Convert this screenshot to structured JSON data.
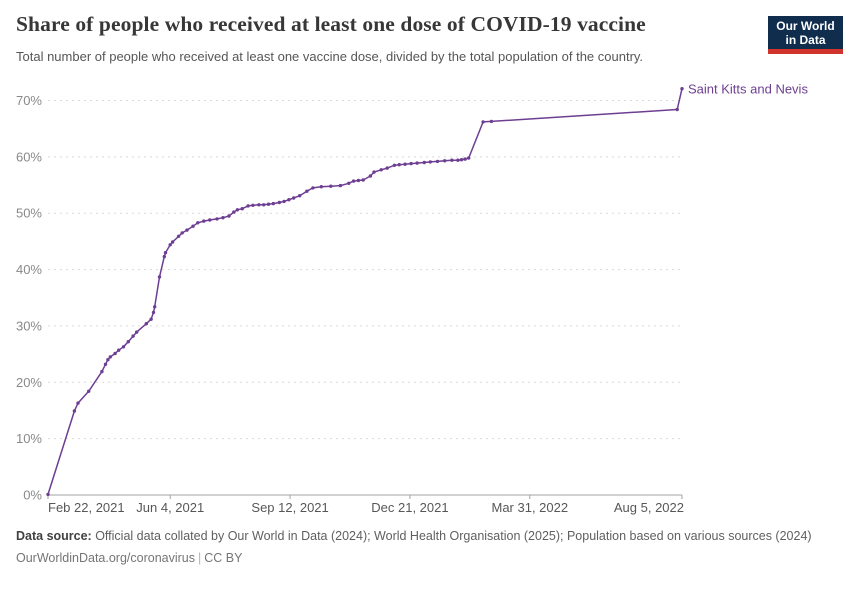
{
  "header": {
    "title": "Share of people who received at least one dose of COVID-19 vaccine",
    "subtitle": "Total number of people who received at least one vaccine dose, divided by the total population of the country.",
    "logo": {
      "line1": "Our World",
      "line2": "in Data",
      "bg_color": "#102d4e",
      "accent_color": "#d0342c"
    }
  },
  "footer": {
    "datasource_label": "Data source:",
    "datasource_text": " Official data collated by Our World in Data (2024); World Health Organisation (2025); Population based on various sources (2024)",
    "link": "OurWorldinData.org/coronavirus",
    "separator": "|",
    "license": "CC BY"
  },
  "chart_data": {
    "type": "line",
    "title": "Share of people who received at least one dose of COVID-19 vaccine",
    "subtitle": "Total number of people who received at least one vaccine dose, divided by the total population of the country.",
    "entity_label": "Saint Kitts and Nevis",
    "line_color": "#6d3e91",
    "grid": true,
    "legend_position": "end-of-line-label",
    "ylim": [
      0,
      74
    ],
    "y_ticks": [
      {
        "label": "0%",
        "value": 0
      },
      {
        "label": "10%",
        "value": 10
      },
      {
        "label": "20%",
        "value": 20
      },
      {
        "label": "30%",
        "value": 30
      },
      {
        "label": "40%",
        "value": 40
      },
      {
        "label": "50%",
        "value": 50
      },
      {
        "label": "60%",
        "value": 60
      },
      {
        "label": "70%",
        "value": 70
      }
    ],
    "x_range_days": [
      0,
      529
    ],
    "x_ticks": [
      {
        "label": "Feb 22, 2021",
        "day": 0,
        "align": "start"
      },
      {
        "label": "Jun 4, 2021",
        "day": 102,
        "align": "middle"
      },
      {
        "label": "Sep 12, 2021",
        "day": 202,
        "align": "middle"
      },
      {
        "label": "Dec 21, 2021",
        "day": 302,
        "align": "middle"
      },
      {
        "label": "Mar 31, 2022",
        "day": 402,
        "align": "middle"
      },
      {
        "label": "Aug 5, 2022",
        "day": 529,
        "align": "end"
      }
    ],
    "series": [
      {
        "name": "Saint Kitts and Nevis",
        "points": [
          [
            0,
            0.1
          ],
          [
            22,
            14.9
          ],
          [
            25,
            16.3
          ],
          [
            34,
            18.4
          ],
          [
            45,
            21.9
          ],
          [
            48,
            23.2
          ],
          [
            50,
            24.0
          ],
          [
            52,
            24.5
          ],
          [
            56,
            25.1
          ],
          [
            59,
            25.7
          ],
          [
            63,
            26.3
          ],
          [
            67,
            27.2
          ],
          [
            71,
            28.2
          ],
          [
            74,
            28.9
          ],
          [
            82,
            30.4
          ],
          [
            86,
            31.2
          ],
          [
            88,
            32.4
          ],
          [
            89,
            33.4
          ],
          [
            93,
            38.7
          ],
          [
            97,
            42.3
          ],
          [
            98,
            43.0
          ],
          [
            102,
            44.4
          ],
          [
            104,
            44.9
          ],
          [
            109,
            45.9
          ],
          [
            112,
            46.5
          ],
          [
            116,
            47.0
          ],
          [
            121,
            47.7
          ],
          [
            125,
            48.3
          ],
          [
            130,
            48.6
          ],
          [
            135,
            48.8
          ],
          [
            141,
            49.0
          ],
          [
            146,
            49.2
          ],
          [
            151,
            49.5
          ],
          [
            155,
            50.2
          ],
          [
            158,
            50.6
          ],
          [
            162,
            50.8
          ],
          [
            167,
            51.3
          ],
          [
            171,
            51.4
          ],
          [
            176,
            51.5
          ],
          [
            180,
            51.5
          ],
          [
            184,
            51.6
          ],
          [
            188,
            51.7
          ],
          [
            193,
            51.9
          ],
          [
            197,
            52.1
          ],
          [
            201,
            52.4
          ],
          [
            205,
            52.7
          ],
          [
            210,
            53.1
          ],
          [
            216,
            53.9
          ],
          [
            221,
            54.5
          ],
          [
            228,
            54.7
          ],
          [
            236,
            54.8
          ],
          [
            244,
            54.9
          ],
          [
            251,
            55.3
          ],
          [
            255,
            55.7
          ],
          [
            259,
            55.8
          ],
          [
            263,
            55.9
          ],
          [
            269,
            56.6
          ],
          [
            272,
            57.3
          ],
          [
            278,
            57.7
          ],
          [
            283,
            58.0
          ],
          [
            289,
            58.5
          ],
          [
            293,
            58.6
          ],
          [
            298,
            58.7
          ],
          [
            303,
            58.8
          ],
          [
            308,
            58.9
          ],
          [
            314,
            59.0
          ],
          [
            319,
            59.1
          ],
          [
            325,
            59.2
          ],
          [
            331,
            59.3
          ],
          [
            337,
            59.4
          ],
          [
            342,
            59.4
          ],
          [
            345,
            59.5
          ],
          [
            348,
            59.6
          ],
          [
            351,
            59.8
          ],
          [
            363,
            66.2
          ],
          [
            370,
            66.3
          ],
          [
            525,
            68.4
          ],
          [
            529,
            72.1
          ]
        ]
      }
    ]
  }
}
